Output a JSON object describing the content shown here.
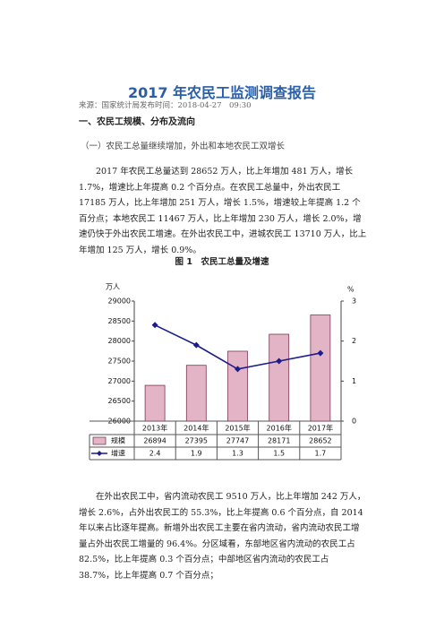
{
  "header": {
    "title": "2017 年农民工监测调查报告",
    "source": "来源：国家统计局发布时间：2018-04-27　09:30"
  },
  "section": {
    "heading": "一、农民工规模、分布及流向",
    "subheading": "（一）农民工总量继续增加，外出和本地农民工双增长"
  },
  "paragraphs": [
    "2017 年农民工总量达到 28652 万人，比上年增加 481 万人，增长 1.7%，增速比上年提高 0.2 个百分点。在农民工总量中，外出农民工 17185 万人，比上年增加 251 万人，增长 1.5%，增速较上年提高 1.2 个百分点；本地农民工 11467 万人，比上年增加 230 万人，增长 2.0%，增速仍快于外出农民工增速。在外出农民工中，进城农民工 13710 万人，比上年增加 125 万人，增长 0.9%。",
    "在外出农民工中，省内流动农民工 9510 万人，比上年增加 242 万人，增长 2.6%，占外出农民工的 55.3%，比上年提高 0.6 个百分点，自 2014 年以来占比逐年提高。新增外出农民工主要在省内流动，省内流动农民工增量占外出农民工增量的 96.4%。分区域看，东部地区省内流动的农民工占 82.5%，比上年提高 0.3 个百分点；中部地区省内流动的农民工占 38.7%，比上年提高 0.7 个百分点；"
  ],
  "chart_data": {
    "type": "bar",
    "title": "图 1　农民工总量及增速",
    "ylabel": "万人",
    "y2label": "%",
    "categories": [
      "2013年",
      "2014年",
      "2015年",
      "2016年",
      "2017年"
    ],
    "series": [
      {
        "name": "规模",
        "color": "#e3b3c6",
        "values": [
          26894,
          27395,
          27747,
          28171,
          28652
        ]
      },
      {
        "name": "增速",
        "color": "#1c1c8c",
        "type": "line",
        "axis": "y2",
        "values": [
          2.4,
          1.9,
          1.3,
          1.5,
          1.7
        ]
      }
    ],
    "ylim": [
      26000,
      29000
    ],
    "yticks": [
      26000,
      26500,
      27000,
      27500,
      28000,
      28500,
      29000
    ],
    "y2lim": [
      0,
      3
    ],
    "y2ticks": [
      0,
      1,
      2,
      3
    ],
    "grid": false
  }
}
